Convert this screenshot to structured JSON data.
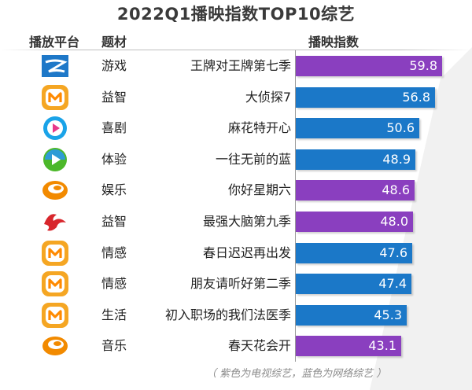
{
  "title": "2022Q1播映指数TOP10综艺",
  "headers": {
    "platform": "播放平台",
    "genre": "题材",
    "index": "播映指数"
  },
  "note": "（ 紫色为电视综艺，蓝色为网络综艺 ）",
  "colors": {
    "tv": "#8a3fbf",
    "web": "#1b78c8",
    "mango": "#ff8a00",
    "mango_bg": "#f5a623",
    "zhejiang": "#1e78c8",
    "youku": "#1aa3e8",
    "iqiyi": "#4cb82a",
    "hunan": "#f28a00",
    "dragon": "#d8262c"
  },
  "chart_data": {
    "type": "bar",
    "orientation": "horizontal",
    "xlim": [
      0,
      70
    ],
    "rows": [
      {
        "platform_icon": "zhejiang-tv-logo-icon",
        "genre": "游戏",
        "show": "王牌对王牌第七季",
        "value": 59.8,
        "kind": "tv"
      },
      {
        "platform_icon": "mango-tv-logo-icon",
        "genre": "益智",
        "show": "大侦探7",
        "value": 56.8,
        "kind": "web"
      },
      {
        "platform_icon": "youku-logo-icon",
        "genre": "喜剧",
        "show": "麻花特开心",
        "value": 50.6,
        "kind": "web"
      },
      {
        "platform_icon": "iqiyi-logo-icon",
        "genre": "体验",
        "show": "一往无前的蓝",
        "value": 48.9,
        "kind": "web"
      },
      {
        "platform_icon": "hunan-tv-logo-icon",
        "genre": "娱乐",
        "show": "你好星期六",
        "value": 48.6,
        "kind": "tv"
      },
      {
        "platform_icon": "dragon-tv-logo-icon",
        "genre": "益智",
        "show": "最强大脑第九季",
        "value": 48.0,
        "kind": "tv"
      },
      {
        "platform_icon": "mango-tv-logo-icon",
        "genre": "情感",
        "show": "春日迟迟再出发",
        "value": 47.6,
        "kind": "web"
      },
      {
        "platform_icon": "mango-tv-logo-icon",
        "genre": "情感",
        "show": "朋友请听好第二季",
        "value": 47.4,
        "kind": "web"
      },
      {
        "platform_icon": "mango-tv-logo-icon",
        "genre": "生活",
        "show": "初入职场的我们法医季",
        "value": 45.3,
        "kind": "web"
      },
      {
        "platform_icon": "hunan-tv-logo-icon",
        "genre": "音乐",
        "show": "春天花会开",
        "value": 43.1,
        "kind": "tv"
      }
    ]
  }
}
